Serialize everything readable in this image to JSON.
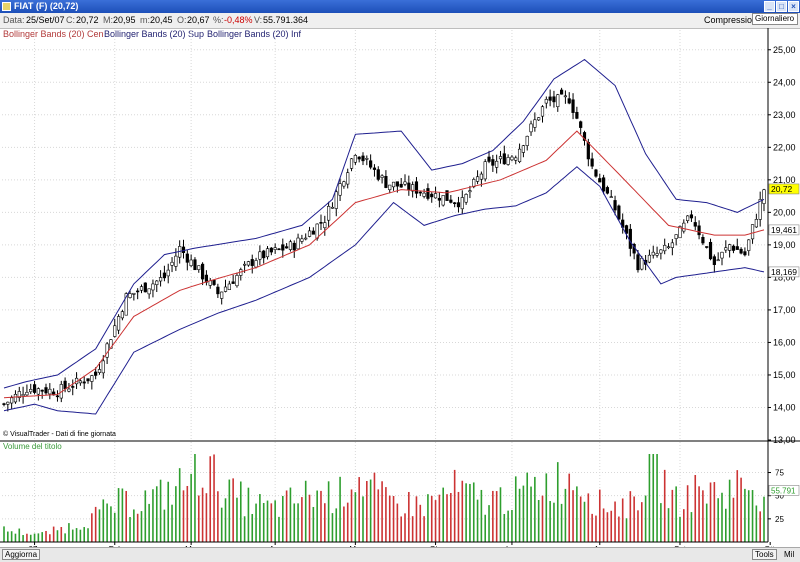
{
  "window": {
    "title": "FIAT (F) (20,72)"
  },
  "info": {
    "date_label": "Data:",
    "date": "25/Set/07",
    "close_label": "C:",
    "close": "20,72",
    "high_label": "M:",
    "high": "20,95",
    "low_label": "m:",
    "low": "20,45",
    "open_label": "O:",
    "open": "20,67",
    "pct_label": "%:",
    "pct": "-0,48%",
    "vol_label": "V:",
    "volume": "55.791.364",
    "compress_label": "Compressione",
    "period": "Giornaliero"
  },
  "legend": {
    "cen": "Bollinger Bands (20) Cen",
    "sup": "Bollinger Bands (20) Sup",
    "inf": "Bollinger Bands (20) Inf"
  },
  "copyright": "© VisualTrader - Dati di fine giornata",
  "volume_title": "Volume del titolo",
  "bottom": {
    "refresh": "Aggiorna",
    "tools": "Tools",
    "scale": "Mil"
  },
  "colors": {
    "up_volume": "#2e9e2e",
    "down_volume": "#cc3333",
    "center_band": "#cc3333",
    "outer_bands": "#1f1f8f",
    "close_highlight": "#ffff00"
  },
  "chart_data": [
    {
      "type": "candlestick",
      "title": "FIAT (F)",
      "ylim": [
        13,
        25.3
      ],
      "yticks": [
        "13,00",
        "14,00",
        "15,00",
        "16,00",
        "17,00",
        "18,00",
        "19,00",
        "20,00",
        "21,00",
        "22,00",
        "23,00",
        "24,00",
        "25,00"
      ],
      "x_months": [
        "07",
        "Feb",
        "Mar",
        "Apr",
        "Mag",
        "Giu",
        "Lug",
        "Ago",
        "Set",
        "Ott"
      ],
      "price_labels": {
        "close": "20,72",
        "center_band": "19,461",
        "lower_band": "18,169"
      },
      "grid": true,
      "close_anchors": [
        [
          0,
          14.1
        ],
        [
          6,
          14.6
        ],
        [
          14,
          14.5
        ],
        [
          24,
          15.0
        ],
        [
          32,
          17.4
        ],
        [
          42,
          18.0
        ],
        [
          46,
          18.9
        ],
        [
          56,
          17.5
        ],
        [
          66,
          18.6
        ],
        [
          76,
          19.0
        ],
        [
          84,
          19.8
        ],
        [
          92,
          21.9
        ],
        [
          100,
          20.9
        ],
        [
          108,
          20.7
        ],
        [
          114,
          20.5
        ],
        [
          120,
          20.3
        ],
        [
          126,
          21.4
        ],
        [
          134,
          21.8
        ],
        [
          142,
          23.4
        ],
        [
          148,
          23.5
        ],
        [
          150,
          22.9
        ],
        [
          154,
          21.4
        ],
        [
          160,
          20.1
        ],
        [
          166,
          18.4
        ],
        [
          174,
          18.9
        ],
        [
          180,
          19.9
        ],
        [
          186,
          18.4
        ],
        [
          190,
          19.0
        ],
        [
          194,
          18.7
        ],
        [
          199,
          20.72
        ]
      ],
      "center_band_anchors": [
        [
          0,
          14.3
        ],
        [
          14,
          14.4
        ],
        [
          24,
          15.2
        ],
        [
          34,
          16.8
        ],
        [
          46,
          17.6
        ],
        [
          54,
          17.9
        ],
        [
          66,
          18.3
        ],
        [
          80,
          19.0
        ],
        [
          92,
          20.3
        ],
        [
          104,
          20.7
        ],
        [
          116,
          20.6
        ],
        [
          130,
          21.0
        ],
        [
          142,
          21.6
        ],
        [
          150,
          22.5
        ],
        [
          160,
          21.3
        ],
        [
          174,
          19.6
        ],
        [
          186,
          19.3
        ],
        [
          194,
          19.3
        ],
        [
          199,
          19.461
        ]
      ],
      "upper_band_anchors": [
        [
          0,
          14.6
        ],
        [
          6,
          14.8
        ],
        [
          14,
          15.0
        ],
        [
          24,
          15.8
        ],
        [
          34,
          17.8
        ],
        [
          42,
          18.7
        ],
        [
          50,
          18.9
        ],
        [
          66,
          19.2
        ],
        [
          78,
          19.6
        ],
        [
          86,
          20.4
        ],
        [
          92,
          22.4
        ],
        [
          104,
          22.5
        ],
        [
          112,
          21.3
        ],
        [
          120,
          21.5
        ],
        [
          128,
          21.9
        ],
        [
          136,
          22.8
        ],
        [
          144,
          24.1
        ],
        [
          152,
          24.7
        ],
        [
          160,
          23.9
        ],
        [
          168,
          21.8
        ],
        [
          176,
          20.4
        ],
        [
          184,
          20.3
        ],
        [
          192,
          20.0
        ],
        [
          199,
          20.4
        ]
      ],
      "lower_band_anchors": [
        [
          0,
          13.9
        ],
        [
          8,
          14.1
        ],
        [
          14,
          13.9
        ],
        [
          24,
          13.8
        ],
        [
          34,
          15.7
        ],
        [
          46,
          16.4
        ],
        [
          56,
          16.9
        ],
        [
          66,
          17.3
        ],
        [
          80,
          18.0
        ],
        [
          92,
          19.0
        ],
        [
          102,
          20.3
        ],
        [
          110,
          19.6
        ],
        [
          118,
          19.9
        ],
        [
          126,
          20.1
        ],
        [
          134,
          20.2
        ],
        [
          142,
          20.6
        ],
        [
          150,
          21.4
        ],
        [
          156,
          20.8
        ],
        [
          164,
          19.1
        ],
        [
          172,
          17.8
        ],
        [
          176,
          18.0
        ],
        [
          188,
          18.2
        ],
        [
          194,
          18.3
        ],
        [
          199,
          18.169
        ]
      ]
    },
    {
      "type": "bar",
      "title": "Volume del titolo",
      "ylabel": "Mil",
      "ylim": [
        0,
        95
      ],
      "yticks": [
        25,
        50,
        75
      ],
      "last_value_label": "55.791",
      "volume_anchors": [
        [
          0,
          14
        ],
        [
          10,
          9
        ],
        [
          20,
          22
        ],
        [
          30,
          45
        ],
        [
          40,
          52
        ],
        [
          48,
          70
        ],
        [
          52,
          88
        ],
        [
          60,
          54
        ],
        [
          70,
          38
        ],
        [
          80,
          56
        ],
        [
          88,
          55
        ],
        [
          92,
          78
        ],
        [
          100,
          47
        ],
        [
          110,
          43
        ],
        [
          118,
          61
        ],
        [
          126,
          48
        ],
        [
          134,
          55
        ],
        [
          142,
          69
        ],
        [
          150,
          76
        ],
        [
          156,
          44
        ],
        [
          164,
          43
        ],
        [
          170,
          87
        ],
        [
          176,
          47
        ],
        [
          182,
          61
        ],
        [
          188,
          58
        ],
        [
          194,
          70
        ],
        [
          197,
          62
        ],
        [
          199,
          56
        ]
      ]
    }
  ]
}
